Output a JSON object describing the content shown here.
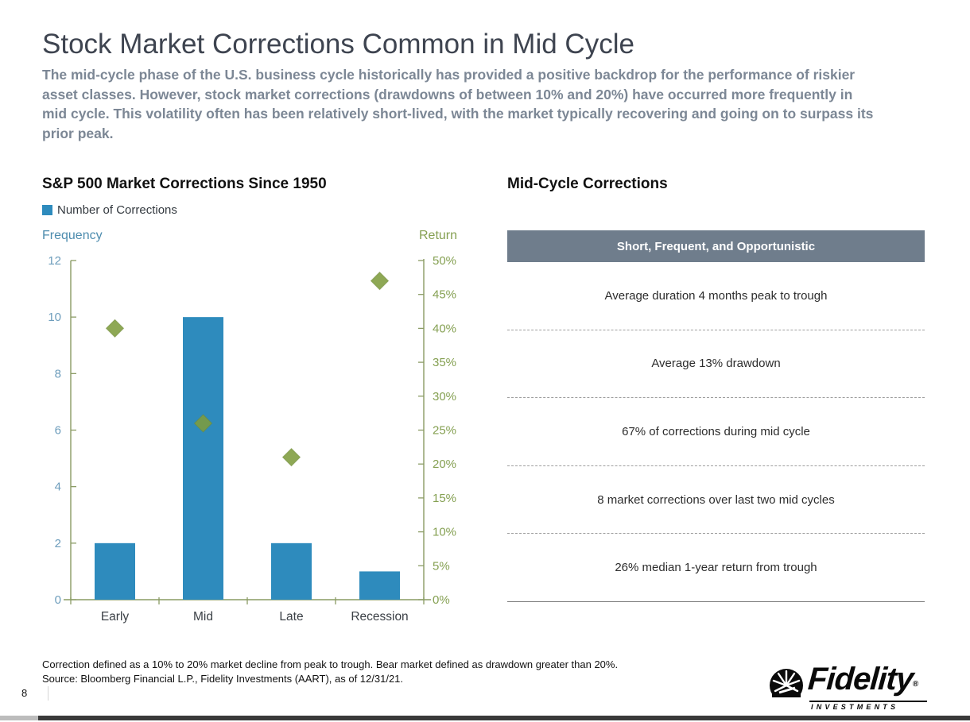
{
  "page": {
    "title": "Stock Market Corrections Common in Mid Cycle",
    "subtitle": "The mid-cycle phase of the U.S. business cycle historically has provided a positive backdrop for the performance of riskier asset classes. However, stock market corrections (drawdowns of between 10% and 20%) have occurred more frequently in mid cycle. This volatility often has been relatively short-lived, with the market typically recovering and going on to surpass its prior peak.",
    "footnote": "Correction defined as a 10% to 20% market decline from peak to trough. Bear market defined as drawdown greater than 20%. Source: Bloomberg Financial L.P., Fidelity Investments (AART), as of 12/31/21.",
    "page_number": "8"
  },
  "chart": {
    "heading": "S&P 500 Market Corrections Since 1950",
    "legend_label": "Number of Corrections",
    "left_axis_title": "Frequency",
    "right_axis_title": "Return"
  },
  "chart_data": {
    "type": "bar",
    "title": "S&P 500 Market Corrections Since 1950",
    "categories": [
      "Early",
      "Mid",
      "Late",
      "Recession"
    ],
    "series": [
      {
        "name": "Number of Corrections",
        "type": "bar",
        "axis": "left",
        "values": [
          2,
          10,
          2,
          1
        ]
      },
      {
        "name": "Return",
        "type": "scatter",
        "axis": "right",
        "values": [
          40,
          26,
          21,
          47
        ],
        "unit": "%"
      }
    ],
    "left_axis": {
      "title": "Frequency",
      "min": 0,
      "max": 12,
      "step": 2
    },
    "right_axis": {
      "title": "Return",
      "min": 0,
      "max": 50,
      "step": 5,
      "suffix": "%"
    },
    "legend_position": "top-left",
    "grid": false
  },
  "panel": {
    "heading": "Mid-Cycle Corrections",
    "table": {
      "header": "Short, Frequent, and Opportunistic",
      "rows": [
        "Average duration 4 months peak to trough",
        "Average 13% drawdown",
        "67% of corrections during mid cycle",
        "8 market corrections over last two mid cycles",
        "26% median 1-year return from trough"
      ]
    }
  },
  "logo": {
    "brand": "Fidelity",
    "registered": "®",
    "sub": "INVESTMENTS"
  },
  "colors": {
    "bar": "#2E8BBD",
    "diamond": "#7E9C3E",
    "diamond_stroke": "#6B8836",
    "axis_line": "#8A9B64",
    "left_ticks": "#6D9DBC",
    "right_ticks": "#85A052",
    "frequency_label": "#4D8CAE",
    "return_label": "#85A052",
    "category_label": "#3A3F45",
    "table_header_bg": "#6F7D8C"
  }
}
